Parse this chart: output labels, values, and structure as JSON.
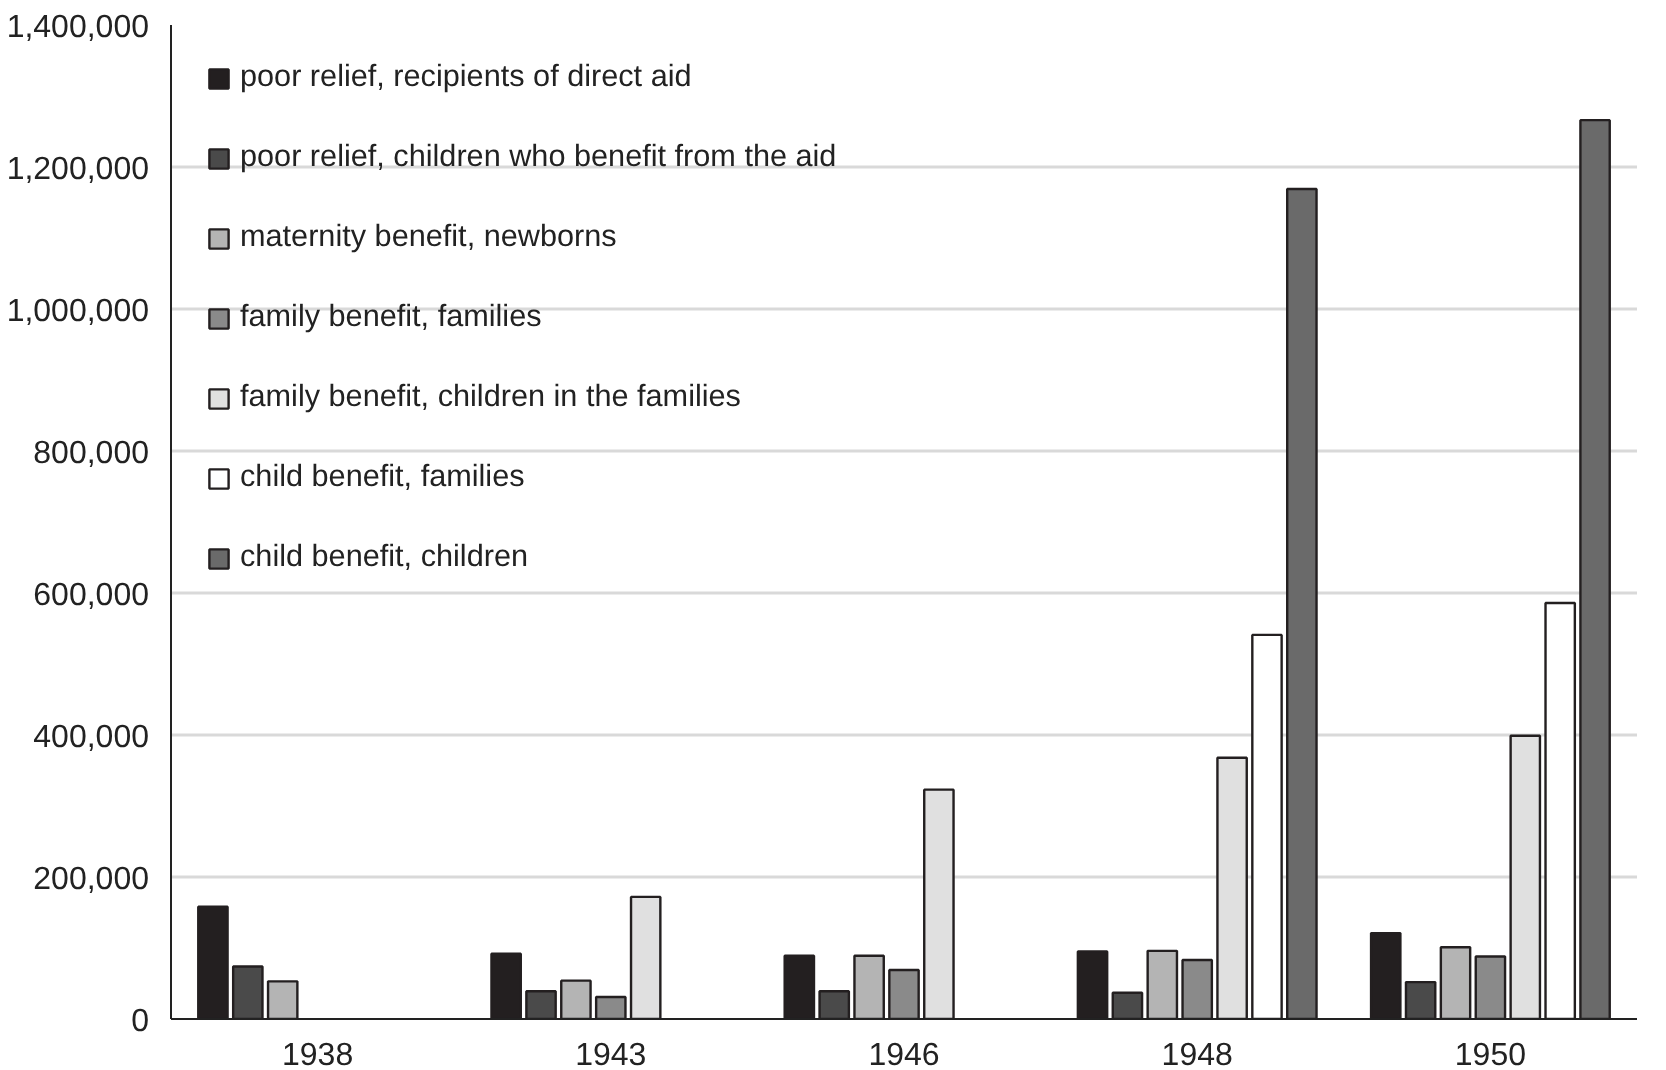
{
  "chart_data": {
    "type": "bar",
    "categories": [
      "1938",
      "1943",
      "1946",
      "1948",
      "1950"
    ],
    "series": [
      {
        "name": "poor relief, recipients of direct aid",
        "color": "#231f20",
        "values": [
          158000,
          92000,
          89000,
          95000,
          121000
        ]
      },
      {
        "name": "poor relief, children who benefit from the aid",
        "color": "#4a4a4a",
        "values": [
          74000,
          39000,
          39000,
          37000,
          52000
        ]
      },
      {
        "name": "maternity benefit, newborns",
        "color": "#b4b4b4",
        "values": [
          53000,
          54000,
          89000,
          96000,
          101000
        ]
      },
      {
        "name": "family benefit, families",
        "color": "#8a8a8a",
        "values": [
          null,
          31000,
          69000,
          83000,
          88000
        ]
      },
      {
        "name": "family benefit, children in the families",
        "color": "#e0e0e0",
        "values": [
          null,
          172000,
          323000,
          368000,
          399000
        ]
      },
      {
        "name": "child benefit, families",
        "color": "#ffffff",
        "values": [
          null,
          null,
          null,
          541000,
          586000
        ]
      },
      {
        "name": "child benefit, children",
        "color": "#6a6a6a",
        "values": [
          null,
          null,
          null,
          1169000,
          1266000
        ]
      }
    ],
    "ylim": [
      0,
      1400000
    ],
    "yticks": [
      0,
      {
        "value": 200000,
        "label": "200,000"
      },
      {
        "value": 400000,
        "label": "400,000"
      },
      {
        "value": 600000,
        "label": "600,000"
      },
      {
        "value": 800000,
        "label": "800,000"
      },
      {
        "value": 1000000,
        "label": "1,000,000"
      },
      {
        "value": 1200000,
        "label": "1,200,000"
      },
      {
        "value": 1400000,
        "label": "1,400,000"
      }
    ],
    "grid": "y",
    "legend": "top left"
  }
}
